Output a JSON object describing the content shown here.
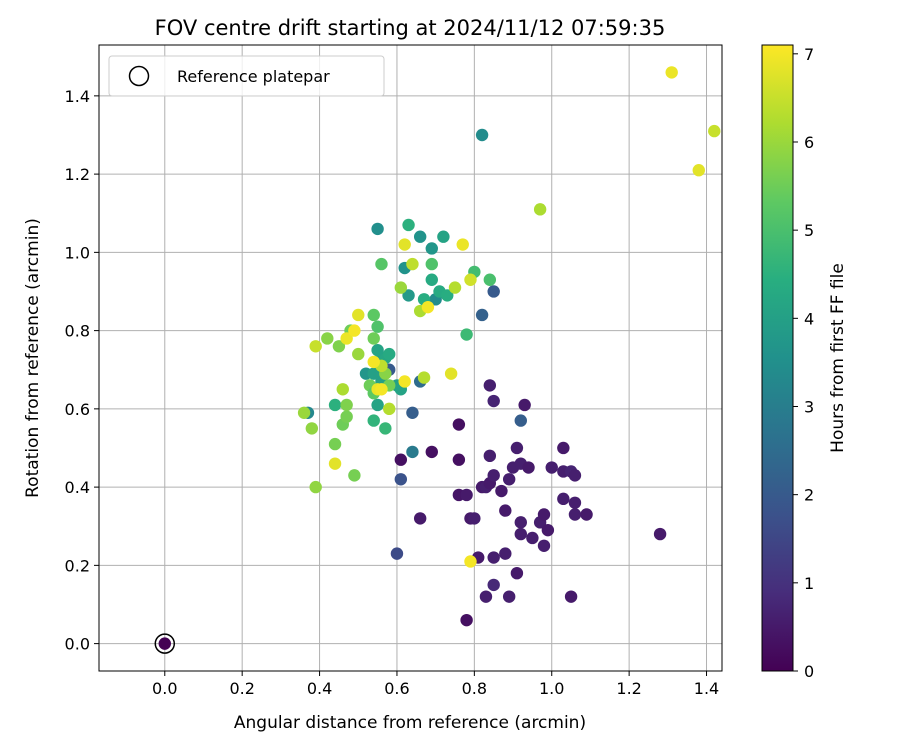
{
  "chart_data": {
    "type": "scatter",
    "title": "FOV centre drift starting at 2024/11/12 07:59:35",
    "xlabel": "Angular distance from reference (arcmin)",
    "ylabel": "Rotation from reference (arcmin)",
    "xlim": [
      -0.17,
      1.44
    ],
    "ylim": [
      -0.07,
      1.53
    ],
    "xticks": [
      "0.0",
      "0.2",
      "0.4",
      "0.6",
      "0.8",
      "1.0",
      "1.2",
      "1.4"
    ],
    "yticks": [
      "0.0",
      "0.2",
      "0.4",
      "0.6",
      "0.8",
      "1.0",
      "1.2",
      "1.4"
    ],
    "grid": true,
    "legend": {
      "label": "Reference platepar",
      "placement": "top-left"
    },
    "colorbar": {
      "label": "Hours from first FF file",
      "range": [
        0,
        7.1
      ],
      "ticks": [
        "0",
        "1",
        "2",
        "3",
        "4",
        "5",
        "6",
        "7"
      ],
      "colormap": "viridis"
    },
    "reference_point": {
      "x": 0.0,
      "y": 0.0
    },
    "points": [
      {
        "x": 0.0,
        "y": 0.0,
        "h": 0.0
      },
      {
        "x": 0.61,
        "y": 0.47,
        "h": 0.3
      },
      {
        "x": 0.69,
        "y": 0.49,
        "h": 0.3
      },
      {
        "x": 0.76,
        "y": 0.56,
        "h": 0.3
      },
      {
        "x": 0.76,
        "y": 0.47,
        "h": 0.3
      },
      {
        "x": 0.76,
        "y": 0.38,
        "h": 0.4
      },
      {
        "x": 0.78,
        "y": 0.38,
        "h": 0.5
      },
      {
        "x": 0.66,
        "y": 0.32,
        "h": 0.5
      },
      {
        "x": 0.79,
        "y": 0.32,
        "h": 0.5
      },
      {
        "x": 0.8,
        "y": 0.32,
        "h": 0.6
      },
      {
        "x": 0.78,
        "y": 0.06,
        "h": 0.3
      },
      {
        "x": 0.81,
        "y": 0.22,
        "h": 0.5
      },
      {
        "x": 0.83,
        "y": 0.12,
        "h": 0.6
      },
      {
        "x": 0.85,
        "y": 0.15,
        "h": 0.8
      },
      {
        "x": 0.85,
        "y": 0.22,
        "h": 0.6
      },
      {
        "x": 0.88,
        "y": 0.23,
        "h": 0.6
      },
      {
        "x": 0.89,
        "y": 0.12,
        "h": 0.6
      },
      {
        "x": 0.91,
        "y": 0.18,
        "h": 0.5
      },
      {
        "x": 0.82,
        "y": 0.4,
        "h": 0.5
      },
      {
        "x": 0.83,
        "y": 0.4,
        "h": 0.6
      },
      {
        "x": 0.84,
        "y": 0.41,
        "h": 0.5
      },
      {
        "x": 0.85,
        "y": 0.43,
        "h": 0.6
      },
      {
        "x": 0.87,
        "y": 0.39,
        "h": 0.5
      },
      {
        "x": 0.84,
        "y": 0.48,
        "h": 0.6
      },
      {
        "x": 0.84,
        "y": 0.66,
        "h": 0.6
      },
      {
        "x": 0.85,
        "y": 0.62,
        "h": 0.7
      },
      {
        "x": 0.88,
        "y": 0.34,
        "h": 0.5
      },
      {
        "x": 0.89,
        "y": 0.42,
        "h": 0.6
      },
      {
        "x": 0.9,
        "y": 0.45,
        "h": 0.6
      },
      {
        "x": 0.91,
        "y": 0.5,
        "h": 0.6
      },
      {
        "x": 0.92,
        "y": 0.46,
        "h": 0.6
      },
      {
        "x": 0.93,
        "y": 0.61,
        "h": 0.5
      },
      {
        "x": 0.92,
        "y": 0.31,
        "h": 0.6
      },
      {
        "x": 0.92,
        "y": 0.28,
        "h": 0.6
      },
      {
        "x": 0.94,
        "y": 0.45,
        "h": 0.5
      },
      {
        "x": 0.95,
        "y": 0.27,
        "h": 0.6
      },
      {
        "x": 0.97,
        "y": 0.31,
        "h": 0.6
      },
      {
        "x": 0.98,
        "y": 0.33,
        "h": 0.5
      },
      {
        "x": 0.98,
        "y": 0.25,
        "h": 0.6
      },
      {
        "x": 0.99,
        "y": 0.29,
        "h": 0.5
      },
      {
        "x": 1.0,
        "y": 0.45,
        "h": 0.6
      },
      {
        "x": 1.03,
        "y": 0.5,
        "h": 0.5
      },
      {
        "x": 1.03,
        "y": 0.37,
        "h": 0.6
      },
      {
        "x": 1.03,
        "y": 0.44,
        "h": 0.6
      },
      {
        "x": 1.05,
        "y": 0.44,
        "h": 0.7
      },
      {
        "x": 1.06,
        "y": 0.43,
        "h": 0.6
      },
      {
        "x": 1.06,
        "y": 0.36,
        "h": 0.6
      },
      {
        "x": 1.06,
        "y": 0.33,
        "h": 0.6
      },
      {
        "x": 1.09,
        "y": 0.33,
        "h": 0.5
      },
      {
        "x": 1.05,
        "y": 0.12,
        "h": 0.5
      },
      {
        "x": 1.28,
        "y": 0.28,
        "h": 0.5
      },
      {
        "x": 0.6,
        "y": 0.23,
        "h": 1.6
      },
      {
        "x": 0.61,
        "y": 0.42,
        "h": 1.8
      },
      {
        "x": 0.64,
        "y": 0.59,
        "h": 2.1
      },
      {
        "x": 0.92,
        "y": 0.57,
        "h": 2.1
      },
      {
        "x": 0.85,
        "y": 0.9,
        "h": 2.0
      },
      {
        "x": 0.82,
        "y": 0.84,
        "h": 2.2
      },
      {
        "x": 0.58,
        "y": 0.7,
        "h": 2.0
      },
      {
        "x": 0.66,
        "y": 0.67,
        "h": 2.5
      },
      {
        "x": 0.64,
        "y": 0.49,
        "h": 2.9
      },
      {
        "x": 0.82,
        "y": 1.3,
        "h": 3.4
      },
      {
        "x": 0.37,
        "y": 0.59,
        "h": 3.3
      },
      {
        "x": 0.55,
        "y": 1.06,
        "h": 3.5
      },
      {
        "x": 0.62,
        "y": 0.96,
        "h": 3.6
      },
      {
        "x": 0.66,
        "y": 1.04,
        "h": 3.6
      },
      {
        "x": 0.69,
        "y": 1.01,
        "h": 3.7
      },
      {
        "x": 0.63,
        "y": 0.89,
        "h": 3.8
      },
      {
        "x": 0.7,
        "y": 0.88,
        "h": 3.4
      },
      {
        "x": 0.52,
        "y": 0.69,
        "h": 3.7
      },
      {
        "x": 0.55,
        "y": 0.72,
        "h": 3.8
      },
      {
        "x": 0.54,
        "y": 0.69,
        "h": 4.0
      },
      {
        "x": 0.56,
        "y": 0.67,
        "h": 4.0
      },
      {
        "x": 0.55,
        "y": 0.61,
        "h": 4.1
      },
      {
        "x": 0.6,
        "y": 0.66,
        "h": 4.0
      },
      {
        "x": 0.61,
        "y": 0.65,
        "h": 4.1
      },
      {
        "x": 0.57,
        "y": 0.73,
        "h": 4.2
      },
      {
        "x": 0.58,
        "y": 0.74,
        "h": 4.3
      },
      {
        "x": 0.55,
        "y": 0.75,
        "h": 4.1
      },
      {
        "x": 0.72,
        "y": 1.04,
        "h": 4.1
      },
      {
        "x": 0.69,
        "y": 0.93,
        "h": 4.3
      },
      {
        "x": 0.71,
        "y": 0.9,
        "h": 4.3
      },
      {
        "x": 0.73,
        "y": 0.89,
        "h": 4.4
      },
      {
        "x": 0.67,
        "y": 0.88,
        "h": 4.4
      },
      {
        "x": 0.63,
        "y": 1.07,
        "h": 4.5
      },
      {
        "x": 0.44,
        "y": 0.61,
        "h": 4.5
      },
      {
        "x": 0.54,
        "y": 0.57,
        "h": 4.6
      },
      {
        "x": 0.57,
        "y": 0.55,
        "h": 4.7
      },
      {
        "x": 0.78,
        "y": 0.79,
        "h": 4.8
      },
      {
        "x": 0.8,
        "y": 0.95,
        "h": 4.9
      },
      {
        "x": 0.84,
        "y": 0.93,
        "h": 5.0
      },
      {
        "x": 0.69,
        "y": 0.97,
        "h": 5.1
      },
      {
        "x": 0.56,
        "y": 0.97,
        "h": 5.2
      },
      {
        "x": 0.55,
        "y": 0.81,
        "h": 5.1
      },
      {
        "x": 0.54,
        "y": 0.84,
        "h": 5.3
      },
      {
        "x": 0.48,
        "y": 0.8,
        "h": 5.5
      },
      {
        "x": 0.54,
        "y": 0.78,
        "h": 5.5
      },
      {
        "x": 0.53,
        "y": 0.66,
        "h": 5.5
      },
      {
        "x": 0.54,
        "y": 0.64,
        "h": 5.3
      },
      {
        "x": 0.57,
        "y": 0.69,
        "h": 5.8
      },
      {
        "x": 0.58,
        "y": 0.66,
        "h": 5.6
      },
      {
        "x": 0.44,
        "y": 0.51,
        "h": 5.6
      },
      {
        "x": 0.46,
        "y": 0.56,
        "h": 5.5
      },
      {
        "x": 0.47,
        "y": 0.58,
        "h": 5.6
      },
      {
        "x": 0.47,
        "y": 0.61,
        "h": 5.7
      },
      {
        "x": 0.49,
        "y": 0.43,
        "h": 5.6
      },
      {
        "x": 0.39,
        "y": 0.4,
        "h": 5.9
      },
      {
        "x": 0.38,
        "y": 0.55,
        "h": 5.9
      },
      {
        "x": 0.36,
        "y": 0.59,
        "h": 6.0
      },
      {
        "x": 0.42,
        "y": 0.78,
        "h": 5.8
      },
      {
        "x": 0.45,
        "y": 0.76,
        "h": 5.7
      },
      {
        "x": 0.5,
        "y": 0.74,
        "h": 6.0
      },
      {
        "x": 0.46,
        "y": 0.65,
        "h": 6.2
      },
      {
        "x": 0.56,
        "y": 0.71,
        "h": 6.4
      },
      {
        "x": 0.58,
        "y": 0.6,
        "h": 6.3
      },
      {
        "x": 0.61,
        "y": 0.91,
        "h": 6.0
      },
      {
        "x": 0.64,
        "y": 0.97,
        "h": 6.4
      },
      {
        "x": 0.66,
        "y": 0.85,
        "h": 6.2
      },
      {
        "x": 0.67,
        "y": 0.68,
        "h": 6.3
      },
      {
        "x": 0.75,
        "y": 0.91,
        "h": 6.3
      },
      {
        "x": 0.79,
        "y": 0.93,
        "h": 6.6
      },
      {
        "x": 0.97,
        "y": 1.11,
        "h": 6.2
      },
      {
        "x": 1.38,
        "y": 1.21,
        "h": 6.8
      },
      {
        "x": 1.42,
        "y": 1.31,
        "h": 6.5
      },
      {
        "x": 0.39,
        "y": 0.76,
        "h": 6.5
      },
      {
        "x": 0.44,
        "y": 0.46,
        "h": 6.8
      },
      {
        "x": 0.5,
        "y": 0.84,
        "h": 6.8
      },
      {
        "x": 0.47,
        "y": 0.78,
        "h": 6.9
      },
      {
        "x": 0.49,
        "y": 0.8,
        "h": 7.0
      },
      {
        "x": 0.54,
        "y": 0.72,
        "h": 7.0
      },
      {
        "x": 0.55,
        "y": 0.65,
        "h": 6.9
      },
      {
        "x": 0.56,
        "y": 0.65,
        "h": 7.0
      },
      {
        "x": 0.62,
        "y": 0.67,
        "h": 7.0
      },
      {
        "x": 0.62,
        "y": 1.02,
        "h": 6.8
      },
      {
        "x": 0.68,
        "y": 0.86,
        "h": 7.0
      },
      {
        "x": 0.74,
        "y": 0.69,
        "h": 6.8
      },
      {
        "x": 0.77,
        "y": 1.02,
        "h": 6.9
      },
      {
        "x": 0.79,
        "y": 0.21,
        "h": 7.0
      },
      {
        "x": 1.31,
        "y": 1.46,
        "h": 6.9
      }
    ]
  }
}
